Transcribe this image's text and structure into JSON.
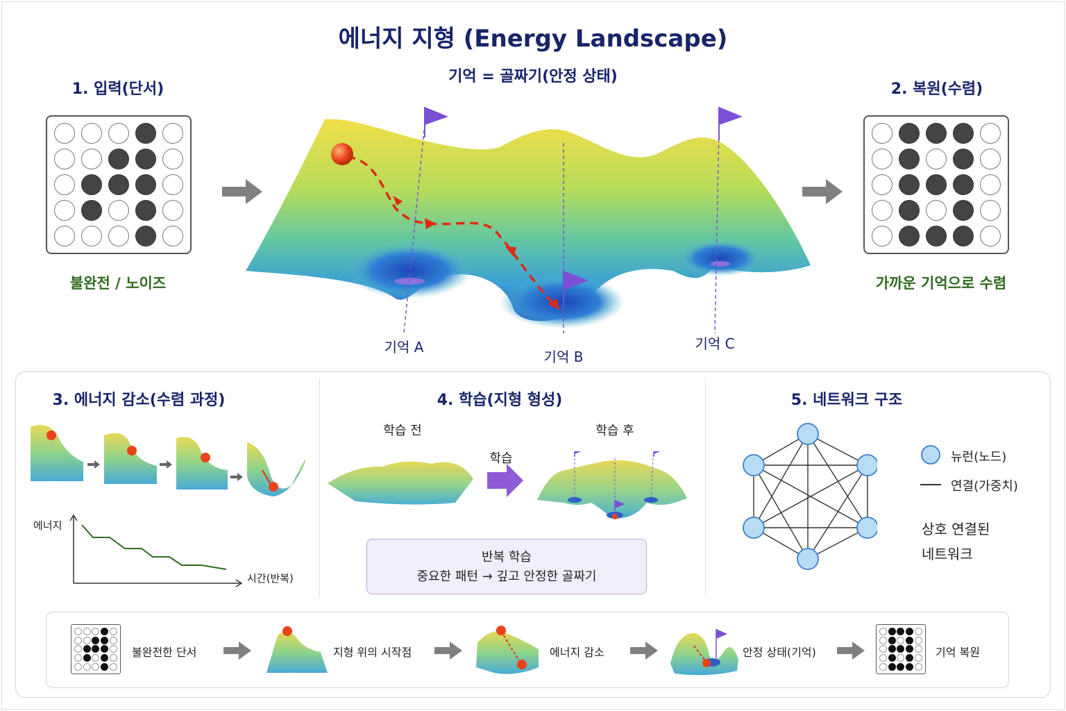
{
  "title": "에너지 지형 (Energy Landscape)",
  "subtitle": "기억 = 골짜기(안정 상태)",
  "input": {
    "heading": "1. 입력(단서)",
    "caption": "불완전 / 노이즈",
    "pattern": [
      [
        0,
        0,
        0,
        1,
        0
      ],
      [
        0,
        0,
        1,
        1,
        0
      ],
      [
        0,
        1,
        1,
        1,
        0
      ],
      [
        0,
        1,
        0,
        1,
        0
      ],
      [
        0,
        0,
        0,
        1,
        0
      ]
    ]
  },
  "output": {
    "heading": "2. 복원(수렴)",
    "caption": "가까운 기억으로 수렴",
    "pattern": [
      [
        0,
        1,
        1,
        1,
        0
      ],
      [
        0,
        1,
        0,
        1,
        0
      ],
      [
        0,
        1,
        1,
        1,
        0
      ],
      [
        0,
        1,
        0,
        1,
        0
      ],
      [
        0,
        1,
        1,
        1,
        0
      ]
    ]
  },
  "memories": {
    "a": "기억 A",
    "b": "기억 B",
    "c": "기억 C"
  },
  "section3": {
    "heading": "3. 에너지 감소(수렴 과정)",
    "y_label": "에너지",
    "x_label": "시간(반복)"
  },
  "section4": {
    "heading": "4. 학습(지형 형성)",
    "before": "학습 전",
    "after": "학습 후",
    "arrow_label": "학습",
    "note_title": "반복 학습",
    "note_body": "중요한 패턴 → 깊고 안정한 골짜기"
  },
  "section5": {
    "heading": "5. 네트워크 구조",
    "legend_node": "뉴런(노드)",
    "legend_edge": "연결(가중치)",
    "desc_line1": "상호 연결된",
    "desc_line2": "네트워크"
  },
  "flow": {
    "steps": [
      "불완전한 단서",
      "지형 위의 시작점",
      "에너지 감소",
      "안정 상태(기억)",
      "기억 복원"
    ]
  },
  "colors": {
    "title": "#17246a",
    "green": "#2e6b1f",
    "ball": "#e8431b",
    "path": "#e02a12",
    "flag": "#7b4fd6",
    "node": "#b8dcf5",
    "arrow": "#808080"
  }
}
